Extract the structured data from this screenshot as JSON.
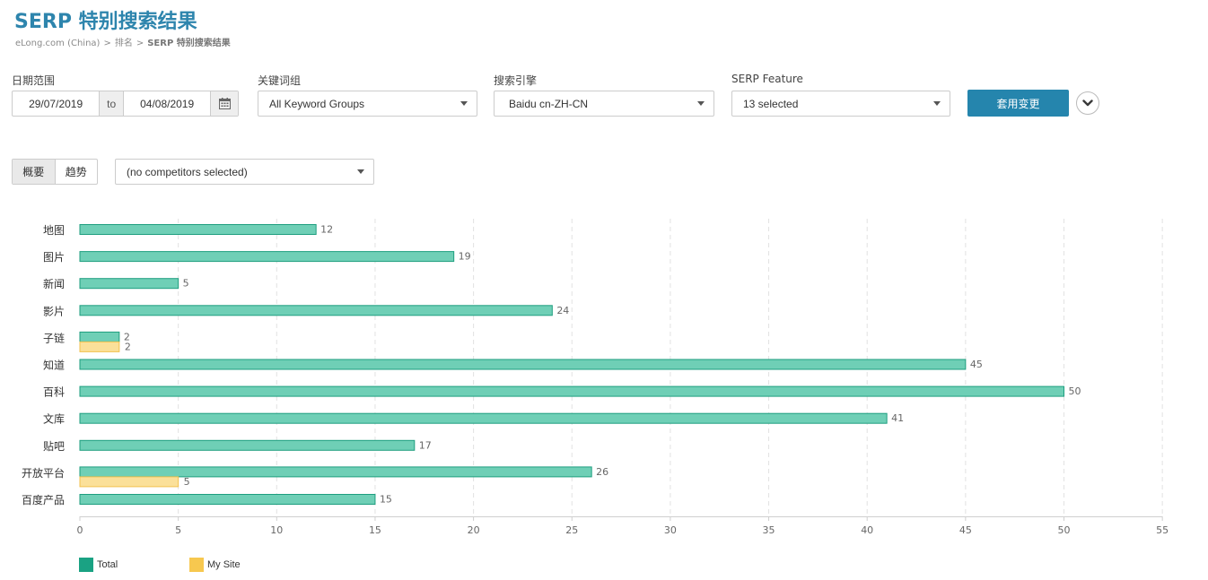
{
  "header": {
    "title": "SERP 特别搜索结果",
    "breadcrumb": [
      "eLong.com (China)",
      "排名",
      "SERP 特别搜索结果"
    ],
    "breadcrumb_separator": ">"
  },
  "filters": {
    "date_range": {
      "label": "日期范围",
      "start": "29/07/2019",
      "to_label": "to",
      "end": "04/08/2019"
    },
    "keyword_groups": {
      "label": "关键词组",
      "value": "All Keyword Groups"
    },
    "search_engine": {
      "label": "搜索引擎",
      "value": "Baidu cn-ZH-CN"
    },
    "serp_feature": {
      "label": "SERP Feature",
      "value": "13 selected"
    },
    "apply_label": "套用变更"
  },
  "view_tabs": [
    {
      "label": "概要",
      "active": true
    },
    {
      "label": "趋势",
      "active": false
    }
  ],
  "competitors": {
    "value": "(no competitors selected)"
  },
  "colors": {
    "total_fill": "#6fcfb6",
    "total_stroke": "#1e9e7f",
    "mysite_fill": "#fbe099",
    "mysite_stroke": "#f2c14e",
    "legend_total": "#1aa283",
    "legend_mysite": "#f7c84f",
    "accent": "#2585ad"
  },
  "chart_data": {
    "type": "bar",
    "orientation": "horizontal",
    "categories": [
      "地图",
      "图片",
      "新闻",
      "影片",
      "子链",
      "知道",
      "百科",
      "文库",
      "贴吧",
      "开放平台",
      "百度产品"
    ],
    "series": [
      {
        "name": "Total",
        "values": [
          12,
          19,
          5,
          24,
          2,
          45,
          50,
          41,
          17,
          26,
          15
        ]
      },
      {
        "name": "My Site",
        "values": [
          null,
          null,
          null,
          null,
          2,
          null,
          null,
          null,
          null,
          5,
          null
        ]
      }
    ],
    "x_ticks": [
      0,
      5,
      10,
      15,
      20,
      25,
      30,
      35,
      40,
      45,
      50,
      55
    ],
    "xlim": [
      0,
      55
    ],
    "grid": true,
    "legend_position": "bottom-left"
  },
  "legend": [
    {
      "label": "Total",
      "color_key": "legend_total"
    },
    {
      "label": "My Site",
      "color_key": "legend_mysite"
    }
  ]
}
